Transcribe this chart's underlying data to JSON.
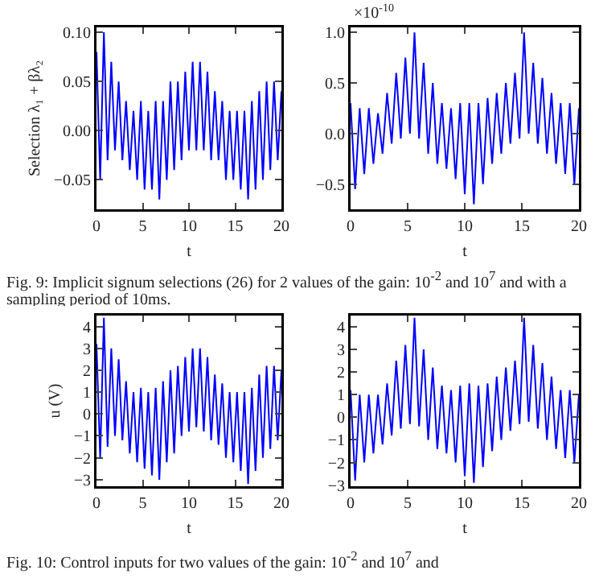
{
  "chart_data": [
    {
      "type": "line",
      "ylabel": "Selection λ₁ + βλ₂",
      "xlabel": "t",
      "annotations": [
        "Fig. 9: Implicit signum selections (26) for 2 values of the gain: 10$^{-2}$ and 10$^{7}$ and with a sampling period of 10ms."
      ],
      "xlim": [
        0,
        20
      ],
      "xticks": [
        0,
        5,
        10,
        15,
        20
      ],
      "ylim": [
        -0.08,
        0.105
      ],
      "yticks": [
        {
          "value": -0.05,
          "label": "−0.05"
        },
        {
          "value": 0,
          "label": "0.00"
        },
        {
          "value": 0.05,
          "label": "0.05"
        },
        {
          "value": 0.1,
          "label": "0.10"
        }
      ],
      "grid": false,
      "x": [
        0,
        0.4,
        0.8,
        1.2,
        1.6,
        2,
        2.4,
        2.8,
        3.2,
        3.6,
        4,
        4.4,
        4.8,
        5.2,
        5.6,
        6,
        6.4,
        6.8,
        7.2,
        7.6,
        8,
        8.4,
        8.8,
        9.2,
        9.6,
        10,
        10.4,
        10.8,
        11.2,
        11.6,
        12,
        12.4,
        12.8,
        13.2,
        13.6,
        14,
        14.4,
        14.8,
        15.2,
        15.6,
        16,
        16.4,
        16.8,
        17.2,
        17.6,
        18,
        18.4,
        18.8,
        19.2,
        19.6,
        20
      ],
      "series": [
        {
          "color": "#0000ff",
          "values": [
            0.08,
            -0.05,
            0.1,
            -0.03,
            0.07,
            -0.02,
            0.05,
            -0.03,
            0.03,
            -0.04,
            0.02,
            -0.05,
            0.03,
            -0.06,
            0.02,
            -0.06,
            0.03,
            -0.07,
            0.03,
            -0.05,
            0.05,
            -0.04,
            0.05,
            -0.03,
            0.06,
            -0.02,
            0.07,
            -0.02,
            0.07,
            -0.02,
            0.06,
            -0.03,
            0.04,
            -0.03,
            0.03,
            -0.05,
            0.02,
            -0.05,
            0.02,
            -0.06,
            0.02,
            -0.07,
            0.03,
            -0.06,
            0.04,
            -0.05,
            0.05,
            -0.04,
            0.05,
            -0.03,
            0.04
          ]
        }
      ]
    },
    {
      "type": "line",
      "xlabel": "t",
      "annotations": [
        "×10$^{-10}$"
      ],
      "xlim": [
        0,
        20
      ],
      "xticks": [
        0,
        5,
        10,
        15,
        20
      ],
      "ylim": [
        -0.75,
        1.05
      ],
      "yticks": [
        {
          "value": -0.5,
          "label": "−0.5"
        },
        {
          "value": 0,
          "label": "0.0"
        },
        {
          "value": 0.5,
          "label": "0.5"
        },
        {
          "value": 1,
          "label": "1.0"
        }
      ],
      "grid": false,
      "x": [
        0,
        0.4,
        0.8,
        1.2,
        1.6,
        2,
        2.4,
        2.8,
        3.2,
        3.6,
        4,
        4.4,
        4.8,
        5.2,
        5.6,
        6,
        6.4,
        6.8,
        7.2,
        7.6,
        8,
        8.4,
        8.8,
        9.2,
        9.6,
        10,
        10.4,
        10.8,
        11.2,
        11.6,
        12,
        12.4,
        12.8,
        13.2,
        13.6,
        14,
        14.4,
        14.8,
        15.2,
        15.6,
        16,
        16.4,
        16.8,
        17.2,
        17.6,
        18,
        18.4,
        18.8,
        19.2,
        19.6,
        20
      ],
      "series": [
        {
          "color": "#0000ff",
          "values": [
            0.3,
            -0.55,
            0.25,
            -0.4,
            0.25,
            -0.3,
            0.2,
            -0.2,
            0.4,
            -0.1,
            0.6,
            -0.05,
            0.75,
            0,
            1.0,
            -0.05,
            0.7,
            -0.2,
            0.5,
            -0.3,
            0.3,
            -0.35,
            0.25,
            -0.45,
            0.3,
            -0.6,
            0.3,
            -0.7,
            0.3,
            -0.5,
            0.35,
            -0.3,
            0.4,
            -0.2,
            0.5,
            -0.1,
            0.6,
            -0.05,
            1.0,
            0,
            0.7,
            -0.1,
            0.55,
            -0.2,
            0.4,
            -0.3,
            0.3,
            -0.4,
            0.3,
            -0.5,
            0.25
          ]
        }
      ]
    },
    {
      "type": "line",
      "ylabel": "u (V)",
      "xlabel": "t",
      "annotations": [
        "Fig. 10: Control inputs for two values of the gain: 10$^{-2}$ and 10$^{7}$ and"
      ],
      "xlim": [
        0,
        20
      ],
      "xticks": [
        0,
        5,
        10,
        15,
        20
      ],
      "ylim": [
        -3.3,
        4.5
      ],
      "yticks": [
        {
          "value": -3,
          "label": "−3"
        },
        {
          "value": -2,
          "label": "−2"
        },
        {
          "value": -1,
          "label": "−1"
        },
        0,
        1,
        2,
        3,
        4
      ],
      "grid": false,
      "x": [
        0,
        0.4,
        0.8,
        1.2,
        1.6,
        2,
        2.4,
        2.8,
        3.2,
        3.6,
        4,
        4.4,
        4.8,
        5.2,
        5.6,
        6,
        6.4,
        6.8,
        7.2,
        7.6,
        8,
        8.4,
        8.8,
        9.2,
        9.6,
        10,
        10.4,
        10.8,
        11.2,
        11.6,
        12,
        12.4,
        12.8,
        13.2,
        13.6,
        14,
        14.4,
        14.8,
        15.2,
        15.6,
        16,
        16.4,
        16.8,
        17.2,
        17.6,
        18,
        18.4,
        18.8,
        19.2,
        19.6,
        20
      ],
      "series": [
        {
          "color": "#0000ff",
          "values": [
            3.2,
            -2.0,
            4.4,
            -1.5,
            3.0,
            -1.0,
            2.5,
            -1.2,
            1.5,
            -1.8,
            1.0,
            -2.2,
            1.2,
            -2.5,
            1.0,
            -2.8,
            1.2,
            -3.0,
            1.5,
            -2.2,
            2.0,
            -1.8,
            2.2,
            -1.0,
            2.6,
            -0.8,
            3.0,
            -0.6,
            3.0,
            -0.8,
            2.6,
            -1.2,
            1.8,
            -1.4,
            1.4,
            -2.0,
            1.0,
            -2.2,
            1.0,
            -2.6,
            1.0,
            -3.2,
            1.2,
            -2.6,
            1.8,
            -2.0,
            2.2,
            -1.6,
            2.2,
            -1.2,
            2.0
          ]
        }
      ]
    },
    {
      "type": "line",
      "xlabel": "t",
      "xlim": [
        0,
        20
      ],
      "xticks": [
        0,
        5,
        10,
        15,
        20
      ],
      "ylim": [
        -3.05,
        4.5
      ],
      "yticks": [
        {
          "value": -3,
          "label": "−3"
        },
        {
          "value": -2,
          "label": "−2"
        },
        {
          "value": -1,
          "label": "−1"
        },
        0,
        1,
        2,
        3,
        4
      ],
      "grid": false,
      "x": [
        0,
        0.4,
        0.8,
        1.2,
        1.6,
        2,
        2.4,
        2.8,
        3.2,
        3.6,
        4,
        4.4,
        4.8,
        5.2,
        5.6,
        6,
        6.4,
        6.8,
        7.2,
        7.6,
        8,
        8.4,
        8.8,
        9.2,
        9.6,
        10,
        10.4,
        10.8,
        11.2,
        11.6,
        12,
        12.4,
        12.8,
        13.2,
        13.6,
        14,
        14.4,
        14.8,
        15.2,
        15.6,
        16,
        16.4,
        16.8,
        17.2,
        17.6,
        18,
        18.4,
        18.8,
        19.2,
        19.6,
        20
      ],
      "series": [
        {
          "color": "#0000ff",
          "values": [
            1.2,
            -2.8,
            1.0,
            -2.0,
            1.0,
            -1.6,
            1.0,
            -1.2,
            1.5,
            -0.8,
            2.5,
            -0.5,
            3.2,
            -0.3,
            4.4,
            -0.4,
            3.0,
            -1.0,
            2.2,
            -1.4,
            1.4,
            -1.6,
            1.2,
            -2.0,
            1.4,
            -2.6,
            1.5,
            -2.9,
            1.4,
            -2.2,
            1.5,
            -1.5,
            1.8,
            -1.0,
            2.2,
            -0.6,
            2.5,
            -0.3,
            4.4,
            -0.2,
            3.2,
            -0.5,
            2.4,
            -1.0,
            1.8,
            -1.4,
            1.2,
            -1.8,
            1.2,
            -2.0,
            1.0
          ]
        }
      ]
    }
  ]
}
